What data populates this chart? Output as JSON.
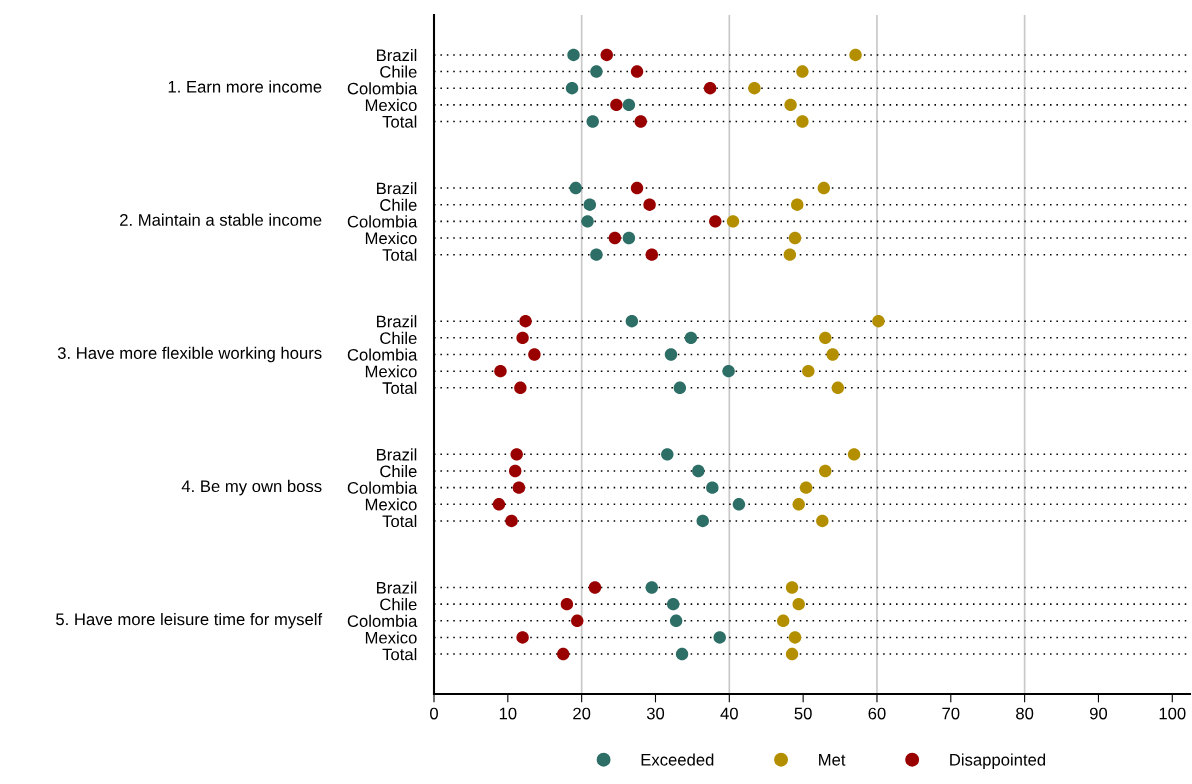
{
  "chart_data": {
    "type": "scatter",
    "orientation": "horizontal",
    "categories": [
      "Brazil",
      "Chile",
      "Colombia",
      "Mexico",
      "Total",
      null,
      null,
      null,
      "Brazil",
      "Chile",
      "Colombia",
      "Mexico",
      "Total",
      null,
      null,
      null,
      "Brazil",
      "Chile",
      "Colombia",
      "Mexico",
      "Total",
      null,
      null,
      null,
      "Brazil",
      "Chile",
      "Colombia",
      "Mexico",
      "Total",
      null,
      null,
      null,
      "Brazil",
      "Chile",
      "Colombia",
      "Mexico",
      "Total"
    ],
    "annotations": [
      "1. Earn more income",
      "2. Maintain a stable income",
      "3. Have more flexible working hours",
      "4. Be my own boss",
      "5. Have more leisure time for myself"
    ],
    "series": [
      {
        "name": "Exceeded",
        "color": "#2d6e66",
        "values": [
          18.9,
          22.0,
          18.7,
          26.4,
          21.5,
          null,
          null,
          null,
          19.2,
          21.1,
          20.8,
          26.4,
          22.0,
          null,
          null,
          null,
          26.8,
          34.8,
          32.1,
          39.9,
          33.3,
          null,
          null,
          null,
          31.6,
          35.8,
          37.7,
          41.3,
          36.4,
          null,
          null,
          null,
          29.5,
          32.4,
          32.8,
          38.7,
          33.6
        ]
      },
      {
        "name": "Met",
        "color": "#b38f00",
        "values": [
          57.1,
          49.9,
          43.4,
          48.3,
          49.9,
          null,
          null,
          null,
          52.8,
          49.2,
          40.5,
          48.9,
          48.2,
          null,
          null,
          null,
          60.2,
          53.0,
          54.0,
          50.7,
          54.7,
          null,
          null,
          null,
          56.9,
          53.0,
          50.4,
          49.4,
          52.6,
          null,
          null,
          null,
          48.5,
          49.4,
          47.3,
          48.9,
          48.5
        ]
      },
      {
        "name": "Disappointed",
        "color": "#990000",
        "values": [
          23.4,
          27.5,
          37.4,
          24.7,
          28.0,
          null,
          null,
          null,
          27.5,
          29.2,
          38.1,
          24.5,
          29.5,
          null,
          null,
          null,
          12.4,
          12.0,
          13.6,
          9.0,
          11.7,
          null,
          null,
          null,
          11.2,
          11.0,
          11.5,
          8.8,
          10.5,
          null,
          null,
          null,
          21.8,
          18.0,
          19.4,
          12.0,
          17.5
        ]
      }
    ],
    "xlim": [
      0,
      102.4
    ],
    "xticks": [
      0,
      10,
      20,
      30,
      40,
      50,
      60,
      70,
      80,
      90,
      100
    ],
    "ref_lines": [
      {
        "axis": "x",
        "value": 20,
        "color": "#c8c8c8"
      },
      {
        "axis": "x",
        "value": 40,
        "color": "#c8c8c8"
      },
      {
        "axis": "x",
        "value": 60,
        "color": "#c8c8c8"
      },
      {
        "axis": "x",
        "value": 80,
        "color": "#c8c8c8"
      }
    ],
    "grid": "y",
    "legend": "bottom",
    "marker": "circle"
  }
}
